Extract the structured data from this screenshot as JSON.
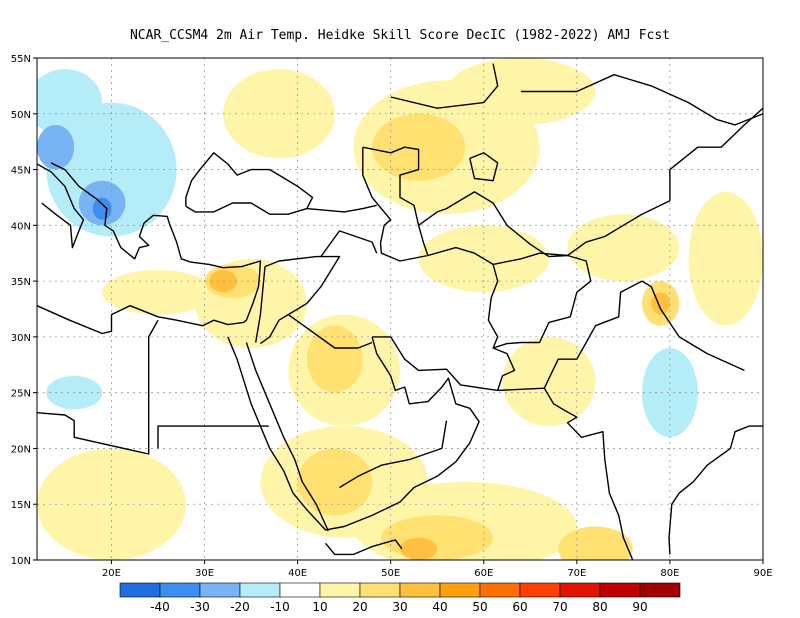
{
  "title": "NCAR_CCSM4  2m Air Temp. Heidke Skill Score DecIC (1982-2022) AMJ Fcst",
  "map": {
    "lon_range": [
      12,
      90
    ],
    "lat_range": [
      10,
      55
    ],
    "lon_ticks": [
      {
        "value": 20,
        "label": "20E"
      },
      {
        "value": 30,
        "label": "30E"
      },
      {
        "value": 40,
        "label": "40E"
      },
      {
        "value": 50,
        "label": "50E"
      },
      {
        "value": 60,
        "label": "60E"
      },
      {
        "value": 70,
        "label": "70E"
      },
      {
        "value": 80,
        "label": "80E"
      },
      {
        "value": 90,
        "label": "90E"
      }
    ],
    "lat_ticks": [
      {
        "value": 10,
        "label": "10N"
      },
      {
        "value": 15,
        "label": "15N"
      },
      {
        "value": 20,
        "label": "20N"
      },
      {
        "value": 25,
        "label": "25N"
      },
      {
        "value": 30,
        "label": "30N"
      },
      {
        "value": 35,
        "label": "35N"
      },
      {
        "value": 40,
        "label": "40N"
      },
      {
        "value": 45,
        "label": "45N"
      },
      {
        "value": 50,
        "label": "50N"
      },
      {
        "value": 55,
        "label": "55N"
      }
    ],
    "gridlines": true
  },
  "colorbar": {
    "colors": [
      "#1f6fe0",
      "#3d8ef0",
      "#78b4f4",
      "#b4ecf8",
      "#ffffff",
      "#fff5a8",
      "#ffe070",
      "#ffc040",
      "#ffa010",
      "#ff7000",
      "#ff4000",
      "#e01400",
      "#c00000",
      "#a00000"
    ],
    "labels": [
      "-40",
      "-30",
      "-20",
      "-10",
      "10",
      "20",
      "30",
      "40",
      "50",
      "60",
      "70",
      "80",
      "90"
    ]
  },
  "anomaly_regions": [
    {
      "level": 20,
      "color": "#fff5a8",
      "lon": 56,
      "lat": 47,
      "rx": 10,
      "ry": 6
    },
    {
      "level": 20,
      "color": "#fff5a8",
      "lon": 38,
      "lat": 50,
      "rx": 6,
      "ry": 4
    },
    {
      "level": 20,
      "color": "#fff5a8",
      "lon": 64,
      "lat": 52,
      "rx": 8,
      "ry": 3
    },
    {
      "level": 20,
      "color": "#fff5a8",
      "lon": 45,
      "lat": 27,
      "rx": 6,
      "ry": 5
    },
    {
      "level": 20,
      "color": "#fff5a8",
      "lon": 60,
      "lat": 37,
      "rx": 7,
      "ry": 3
    },
    {
      "level": 20,
      "color": "#fff5a8",
      "lon": 75,
      "lat": 38,
      "rx": 6,
      "ry": 3
    },
    {
      "level": 20,
      "color": "#fff5a8",
      "lon": 35,
      "lat": 33,
      "rx": 6,
      "ry": 4
    },
    {
      "level": 20,
      "color": "#fff5a8",
      "lon": 25,
      "lat": 34,
      "rx": 6,
      "ry": 2
    },
    {
      "level": 20,
      "color": "#fff5a8",
      "lon": 45,
      "lat": 17,
      "rx": 9,
      "ry": 5
    },
    {
      "level": 20,
      "color": "#fff5a8",
      "lon": 58,
      "lat": 13,
      "rx": 12,
      "ry": 4
    },
    {
      "level": 20,
      "color": "#fff5a8",
      "lon": 20,
      "lat": 15,
      "rx": 8,
      "ry": 5
    },
    {
      "level": 20,
      "color": "#fff5a8",
      "lon": 86,
      "lat": 37,
      "rx": 4,
      "ry": 6
    },
    {
      "level": 20,
      "color": "#fff5a8",
      "lon": 67,
      "lat": 26,
      "rx": 5,
      "ry": 4
    },
    {
      "level": 30,
      "color": "#ffe070",
      "lon": 53,
      "lat": 47,
      "rx": 5,
      "ry": 3
    },
    {
      "level": 30,
      "color": "#ffe070",
      "lon": 44,
      "lat": 28,
      "rx": 3,
      "ry": 3
    },
    {
      "level": 30,
      "color": "#ffe070",
      "lon": 44,
      "lat": 17,
      "rx": 4,
      "ry": 3
    },
    {
      "level": 30,
      "color": "#ffe070",
      "lon": 55,
      "lat": 12,
      "rx": 6,
      "ry": 2
    },
    {
      "level": 30,
      "color": "#ffe070",
      "lon": 33,
      "lat": 35,
      "rx": 3,
      "ry": 1.5
    },
    {
      "level": 30,
      "color": "#ffe070",
      "lon": 79,
      "lat": 33,
      "rx": 2,
      "ry": 2
    },
    {
      "level": 30,
      "color": "#ffe070",
      "lon": 72,
      "lat": 11,
      "rx": 4,
      "ry": 2
    },
    {
      "level": 40,
      "color": "#ffc040",
      "lon": 79,
      "lat": 33,
      "rx": 1,
      "ry": 1
    },
    {
      "level": 40,
      "color": "#ffc040",
      "lon": 53,
      "lat": 11,
      "rx": 2,
      "ry": 1
    },
    {
      "level": 40,
      "color": "#ffc040",
      "lon": 32,
      "lat": 35,
      "rx": 1.5,
      "ry": 1
    },
    {
      "level": -10,
      "color": "#b4ecf8",
      "lon": 20,
      "lat": 45,
      "rx": 7,
      "ry": 6
    },
    {
      "level": -10,
      "color": "#b4ecf8",
      "lon": 15,
      "lat": 51,
      "rx": 4,
      "ry": 3
    },
    {
      "level": -10,
      "color": "#b4ecf8",
      "lon": 80,
      "lat": 25,
      "rx": 3,
      "ry": 4
    },
    {
      "level": -10,
      "color": "#b4ecf8",
      "lon": 16,
      "lat": 25,
      "rx": 3,
      "ry": 1.5
    },
    {
      "level": -20,
      "color": "#78b4f4",
      "lon": 19,
      "lat": 42,
      "rx": 2.5,
      "ry": 2
    },
    {
      "level": -20,
      "color": "#78b4f4",
      "lon": 14,
      "lat": 47,
      "rx": 2,
      "ry": 2
    },
    {
      "level": -30,
      "color": "#3d8ef0",
      "lon": 19,
      "lat": 41.5,
      "rx": 1,
      "ry": 1
    }
  ]
}
